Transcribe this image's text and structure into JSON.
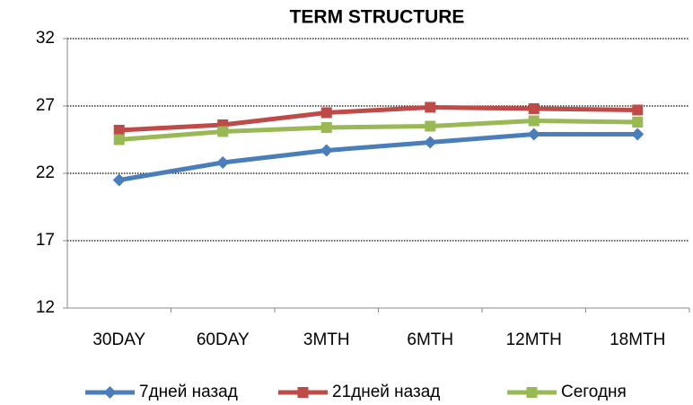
{
  "chart_data": {
    "type": "line",
    "title": "TERM STRUCTURE",
    "categories": [
      "30DAY",
      "60DAY",
      "3MTH",
      "6MTH",
      "12MTH",
      "18MTH"
    ],
    "series": [
      {
        "name": "7дней назад",
        "color": "#4a7ebb",
        "marker": "diamond",
        "values": [
          21.5,
          22.8,
          23.7,
          24.3,
          24.9,
          24.9
        ]
      },
      {
        "name": "21дней назад",
        "color": "#be4b48",
        "marker": "square",
        "values": [
          25.2,
          25.6,
          26.5,
          26.9,
          26.8,
          26.7
        ]
      },
      {
        "name": "Сегодня",
        "color": "#98b954",
        "marker": "square",
        "values": [
          24.5,
          25.1,
          25.4,
          25.5,
          25.9,
          25.8
        ]
      }
    ],
    "ylim": [
      12,
      32
    ],
    "yticks": [
      12,
      17,
      22,
      27,
      32
    ],
    "grid": true,
    "legend": "bottom"
  }
}
